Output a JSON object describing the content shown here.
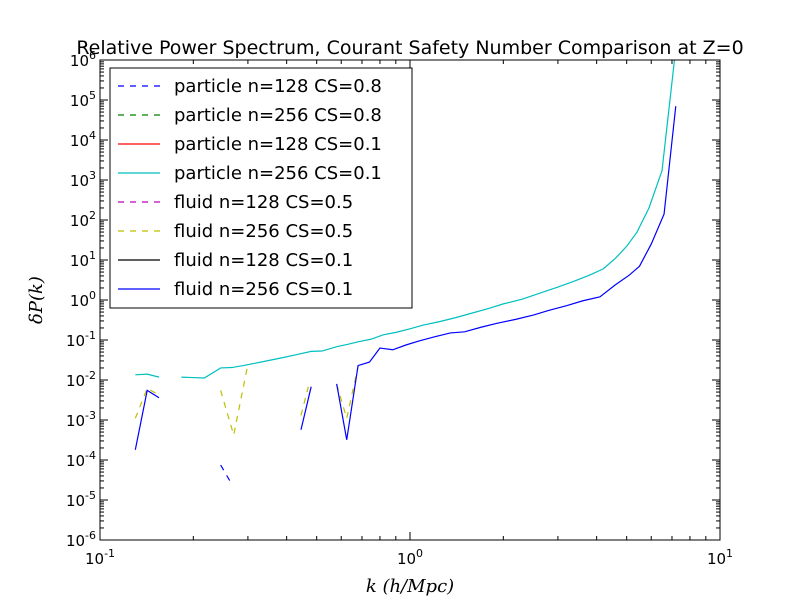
{
  "chart_data": {
    "type": "line",
    "title": "Relative Power Spectrum, Courant Safety Number Comparison at Z=0",
    "xlabel": "k (h/Mpc)",
    "ylabel": "δP(k)",
    "xscale": "log",
    "yscale": "log",
    "xlim": [
      0.1,
      10
    ],
    "ylim": [
      1e-06,
      1000000
    ],
    "x_ticks": [
      {
        "value": 0.1,
        "base": "10",
        "exp": "-1"
      },
      {
        "value": 1,
        "base": "10",
        "exp": "0"
      },
      {
        "value": 10,
        "base": "10",
        "exp": "1"
      }
    ],
    "y_ticks": [
      {
        "value": 1e-06,
        "base": "10",
        "exp": "-6"
      },
      {
        "value": 1e-05,
        "base": "10",
        "exp": "-5"
      },
      {
        "value": 0.0001,
        "base": "10",
        "exp": "-4"
      },
      {
        "value": 0.001,
        "base": "10",
        "exp": "-3"
      },
      {
        "value": 0.01,
        "base": "10",
        "exp": "-2"
      },
      {
        "value": 0.1,
        "base": "10",
        "exp": "-1"
      },
      {
        "value": 1,
        "base": "10",
        "exp": "0"
      },
      {
        "value": 10,
        "base": "10",
        "exp": "1"
      },
      {
        "value": 100,
        "base": "10",
        "exp": "2"
      },
      {
        "value": 1000,
        "base": "10",
        "exp": "3"
      },
      {
        "value": 10000,
        "base": "10",
        "exp": "4"
      },
      {
        "value": 100000,
        "base": "10",
        "exp": "5"
      },
      {
        "value": 1000000,
        "base": "10",
        "exp": "6"
      }
    ],
    "grid": false,
    "legend_position": "top-left",
    "series": [
      {
        "name": "particle n=128 CS=0.8",
        "color": "#0000ff",
        "style": "dashed",
        "segments": [
          [
            [
              0.245,
              7.5e-05
            ],
            [
              0.266,
              2.5e-05
            ]
          ]
        ]
      },
      {
        "name": "particle n=256 CS=0.8",
        "color": "#008000",
        "style": "dashed",
        "segments": []
      },
      {
        "name": "particle n=128 CS=0.1",
        "color": "#ff0000",
        "style": "solid",
        "segments": []
      },
      {
        "name": "particle n=256 CS=0.1",
        "color": "#00bfbf",
        "style": "solid",
        "segments": [
          [
            [
              0.13,
              0.0135
            ],
            [
              0.142,
              0.014
            ],
            [
              0.155,
              0.0118
            ]
          ],
          [
            [
              0.183,
              0.0118
            ],
            [
              0.199,
              0.0115
            ],
            [
              0.217,
              0.0112
            ],
            [
              0.245,
              0.02
            ],
            [
              0.266,
              0.0205
            ],
            [
              0.29,
              0.023
            ],
            [
              0.33,
              0.028
            ],
            [
              0.38,
              0.035
            ],
            [
              0.43,
              0.043
            ],
            [
              0.48,
              0.052
            ],
            [
              0.52,
              0.053
            ],
            [
              0.58,
              0.068
            ],
            [
              0.63,
              0.078
            ],
            [
              0.68,
              0.09
            ],
            [
              0.75,
              0.105
            ],
            [
              0.82,
              0.135
            ],
            [
              0.9,
              0.155
            ],
            [
              1.0,
              0.19
            ],
            [
              1.1,
              0.235
            ],
            [
              1.25,
              0.29
            ],
            [
              1.4,
              0.36
            ],
            [
              1.6,
              0.48
            ],
            [
              1.8,
              0.62
            ],
            [
              2.0,
              0.8
            ],
            [
              2.3,
              1.05
            ],
            [
              2.6,
              1.45
            ],
            [
              3.0,
              2.1
            ],
            [
              3.4,
              3.0
            ],
            [
              3.8,
              4.2
            ],
            [
              4.2,
              6.0
            ],
            [
              4.6,
              11
            ],
            [
              5.0,
              22
            ],
            [
              5.4,
              50
            ],
            [
              5.9,
              200
            ],
            [
              6.5,
              1700
            ],
            [
              7.15,
              1200000
            ]
          ]
        ]
      },
      {
        "name": "fluid n=128 CS=0.5",
        "color": "#bf00bf",
        "style": "dashed",
        "segments": []
      },
      {
        "name": "fluid n=256 CS=0.5",
        "color": "#bfbf00",
        "style": "dashed",
        "segments": [
          [
            [
              0.13,
              0.0011
            ],
            [
              0.142,
              0.0062
            ],
            [
              0.155,
              0.0042
            ]
          ],
          [
            [
              0.245,
              0.0055
            ],
            [
              0.27,
              0.00042
            ],
            [
              0.3,
              0.025
            ]
          ],
          [
            [
              0.445,
              0.0013
            ],
            [
              0.47,
              0.0068
            ]
          ],
          [
            [
              0.58,
              0.0078
            ],
            [
              0.625,
              0.0011
            ],
            [
              0.68,
              0.022
            ]
          ]
        ]
      },
      {
        "name": "fluid n=128 CS=0.1",
        "color": "#000000",
        "style": "solid",
        "segments": []
      },
      {
        "name": "fluid n=256 CS=0.1",
        "color": "#0000ff",
        "style": "solid",
        "segments": [
          [
            [
              0.13,
              0.00018
            ],
            [
              0.142,
              0.0055
            ],
            [
              0.155,
              0.0036
            ]
          ],
          [
            [
              0.445,
              0.00057
            ],
            [
              0.48,
              0.0068
            ]
          ],
          [
            [
              0.58,
              0.008
            ],
            [
              0.625,
              0.00032
            ],
            [
              0.68,
              0.023
            ],
            [
              0.74,
              0.028
            ],
            [
              0.8,
              0.063
            ],
            [
              0.88,
              0.057
            ],
            [
              0.97,
              0.075
            ],
            [
              1.07,
              0.095
            ],
            [
              1.2,
              0.12
            ],
            [
              1.35,
              0.15
            ],
            [
              1.5,
              0.16
            ],
            [
              1.7,
              0.21
            ],
            [
              1.9,
              0.26
            ],
            [
              2.2,
              0.33
            ],
            [
              2.5,
              0.42
            ],
            [
              2.8,
              0.55
            ],
            [
              3.2,
              0.72
            ],
            [
              3.6,
              0.95
            ],
            [
              4.1,
              1.2
            ],
            [
              4.6,
              2.4
            ],
            [
              5.1,
              4.2
            ],
            [
              5.5,
              7
            ],
            [
              6.0,
              25
            ],
            [
              6.6,
              140
            ],
            [
              7.2,
              70000
            ]
          ]
        ]
      }
    ]
  }
}
